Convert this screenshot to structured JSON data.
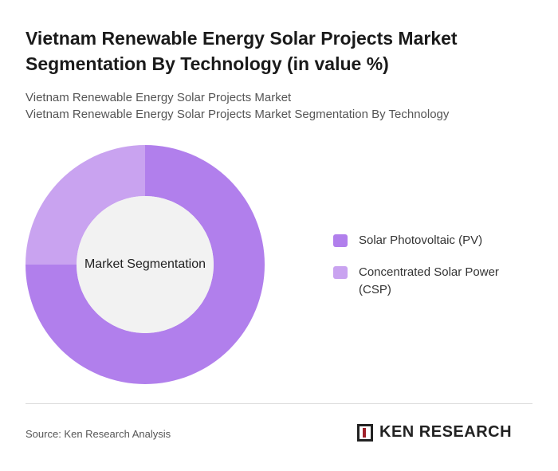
{
  "chart_data": {
    "type": "donut",
    "title": "Vietnam Renewable Energy Solar Projects Market Segmentation By Technology (in value %)",
    "subtitle": [
      "Vietnam Renewable Energy Solar Projects Market",
      "Vietnam Renewable Energy Solar Projects Market Segmentation By Technology"
    ],
    "center_label": "Market Segmentation",
    "categories": [
      "Solar Photovoltaic (PV)",
      "Concentrated Solar Power (CSP)"
    ],
    "values": [
      75,
      25
    ],
    "colors": [
      "#b17fec",
      "#c9a3f0"
    ]
  },
  "footer": {
    "source": "Source: Ken Research Analysis",
    "brand": "KEN RESEARCH"
  }
}
